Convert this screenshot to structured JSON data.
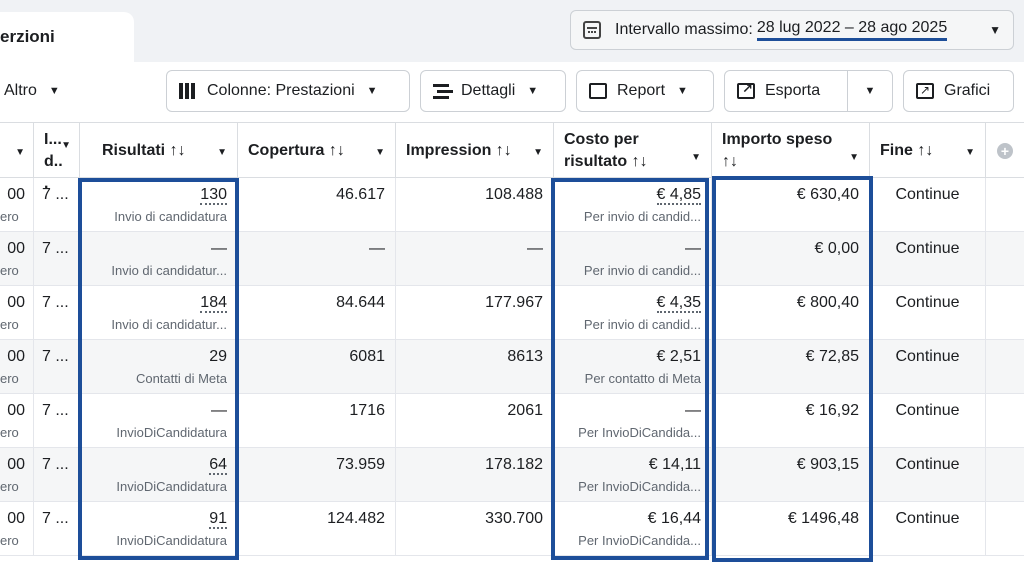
{
  "top_tab": {
    "label": "erzioni"
  },
  "date_range": {
    "label": "Intervallo massimo:",
    "value": "28 lug 2022 – 28 ago 2025"
  },
  "toolbar": {
    "altro": "Altro",
    "colonne": "Colonne: Prestazioni",
    "dettagli": "Dettagli",
    "report": "Report",
    "esporta": "Esporta",
    "grafici": "Grafici"
  },
  "columns": [
    {
      "key": "c0",
      "label": ""
    },
    {
      "key": "c1",
      "label": "I... d..."
    },
    {
      "key": "risultati",
      "label": "Risultati ↑↓"
    },
    {
      "key": "copertura",
      "label": "Copertura ↑↓"
    },
    {
      "key": "impression",
      "label": "Impression ↑↓"
    },
    {
      "key": "costo",
      "label": "Costo per risultato ↑↓"
    },
    {
      "key": "importo",
      "label": "Importo speso ↑↓"
    },
    {
      "key": "fine",
      "label": "Fine ↑↓"
    }
  ],
  "rows": [
    {
      "c0": "00",
      "c0_sub": "ero",
      "c1": "7 ...",
      "risultati": "130",
      "risultati_sub": "Invio di candidatura",
      "copertura": "46.617",
      "impression": "108.488",
      "costo": "€ 4,85",
      "costo_sub": "Per invio di candid...",
      "importo": "€ 630,40",
      "fine": "Continue"
    },
    {
      "c0": "00",
      "c0_sub": "ero",
      "c1": "7 ...",
      "risultati": "—",
      "risultati_sub": "Invio di candidatur...",
      "copertura": "—",
      "impression": "—",
      "costo": "—",
      "costo_sub": "Per invio di candid...",
      "importo": "€ 0,00",
      "fine": "Continue"
    },
    {
      "c0": "00",
      "c0_sub": "ero",
      "c1": "7 ...",
      "risultati": "184",
      "risultati_sub": "Invio di candidatur...",
      "copertura": "84.644",
      "impression": "177.967",
      "costo": "€ 4,35",
      "costo_sub": "Per invio di candid...",
      "importo": "€ 800,40",
      "fine": "Continue"
    },
    {
      "c0": "00",
      "c0_sub": "ero",
      "c1": "7 ...",
      "risultati": "29",
      "risultati_sub": "Contatti di Meta",
      "copertura": "6081",
      "impression": "8613",
      "costo": "€ 2,51",
      "costo_sub": "Per contatto di Meta",
      "importo": "€ 72,85",
      "fine": "Continue"
    },
    {
      "c0": "00",
      "c0_sub": "ero",
      "c1": "7 ...",
      "risultati": "—",
      "risultati_sub": "InvioDiCandidatura",
      "copertura": "1716",
      "impression": "2061",
      "costo": "—",
      "costo_sub": "Per InvioDiCandida...",
      "importo": "€ 16,92",
      "fine": "Continue"
    },
    {
      "c0": "00",
      "c0_sub": "ero",
      "c1": "7 ...",
      "risultati": "64",
      "risultati_sub": "InvioDiCandidatura",
      "copertura": "73.959",
      "impression": "178.182",
      "costo": "€ 14,11",
      "costo_sub": "Per InvioDiCandida...",
      "importo": "€ 903,15",
      "fine": "Continue"
    },
    {
      "c0": "00",
      "c0_sub": "ero",
      "c1": "7 ...",
      "risultati": "91",
      "risultati_sub": "InvioDiCandidatura",
      "copertura": "124.482",
      "impression": "330.700",
      "costo": "€ 16,44",
      "costo_sub": "Per InvioDiCandida...",
      "importo": "€ 1496,48",
      "fine": "Continue"
    }
  ],
  "colors": {
    "highlight": "#1d4e99",
    "accent": "#1d4e99"
  }
}
